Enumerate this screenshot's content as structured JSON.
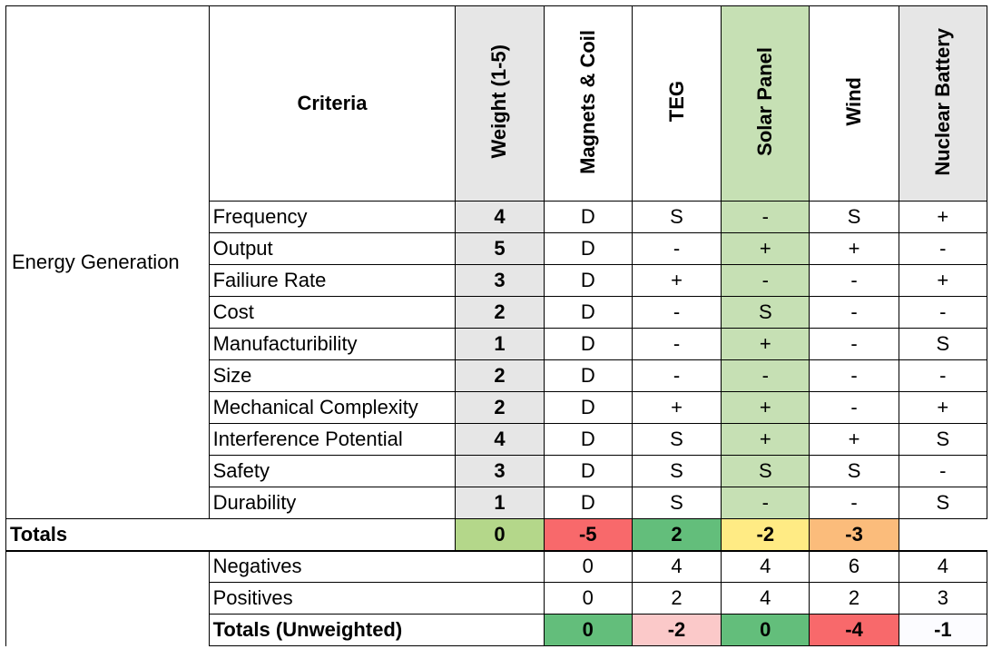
{
  "category": "Energy Generation",
  "headers": {
    "criteria": "Criteria",
    "weight": "Weight (1-5)",
    "options": [
      "Magnets & Coil",
      "TEG",
      "Solar Panel",
      "Wind",
      "Nuclear Battery"
    ]
  },
  "rows": [
    {
      "criteria": "Frequency",
      "weight": "4",
      "scores": [
        "D",
        "S",
        "-",
        "S",
        "+"
      ]
    },
    {
      "criteria": "Output",
      "weight": "5",
      "scores": [
        "D",
        "-",
        "+",
        "+",
        "-"
      ]
    },
    {
      "criteria": "Failiure Rate",
      "weight": "3",
      "scores": [
        "D",
        "+",
        "-",
        "-",
        "+"
      ]
    },
    {
      "criteria": "Cost",
      "weight": "2",
      "scores": [
        "D",
        "-",
        "S",
        "-",
        "-"
      ]
    },
    {
      "criteria": "Manufacturibility",
      "weight": "1",
      "scores": [
        "D",
        "-",
        "+",
        "-",
        "S"
      ]
    },
    {
      "criteria": "Size",
      "weight": "2",
      "scores": [
        "D",
        "-",
        "-",
        "-",
        "-"
      ]
    },
    {
      "criteria": "Mechanical Complexity",
      "weight": "2",
      "scores": [
        "D",
        "+",
        "+",
        "-",
        "+"
      ]
    },
    {
      "criteria": "Interference Potential",
      "weight": "4",
      "scores": [
        "D",
        "S",
        "+",
        "+",
        "S"
      ]
    },
    {
      "criteria": "Safety",
      "weight": "3",
      "scores": [
        "D",
        "S",
        "S",
        "S",
        "-"
      ]
    },
    {
      "criteria": "Durability",
      "weight": "1",
      "scores": [
        "D",
        "S",
        "-",
        "-",
        "S"
      ]
    }
  ],
  "totals": {
    "label": "Totals",
    "values": [
      "0",
      "-5",
      "2",
      "-2",
      "-3"
    ],
    "colors": [
      "#b4d78a",
      "#f8696b",
      "#63be7b",
      "#ffeb84",
      "#fbbc7b"
    ]
  },
  "negatives": {
    "label": "Negatives",
    "values": [
      "0",
      "4",
      "4",
      "6",
      "4"
    ]
  },
  "positives": {
    "label": "Positives",
    "values": [
      "0",
      "2",
      "4",
      "2",
      "3"
    ]
  },
  "totals_unweighted": {
    "label": "Totals (Unweighted)",
    "values": [
      "0",
      "-2",
      "0",
      "-4",
      "-1"
    ],
    "colors": [
      "#63be7b",
      "#fbc9c9",
      "#63be7b",
      "#f8696b",
      "#fcfcff"
    ]
  },
  "colors": {
    "grey": "#e6e6e6",
    "solar_highlight": "#c6e0b4",
    "border": "#000000"
  }
}
